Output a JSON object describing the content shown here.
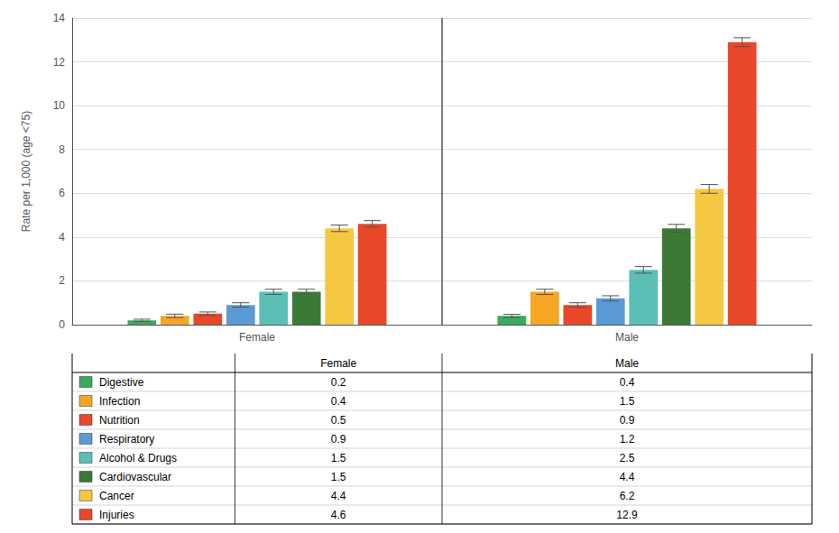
{
  "chart_data": {
    "type": "bar",
    "categories": [
      "Female",
      "Male"
    ],
    "ylabel": "Rate per 1,000 (age <75)",
    "ylim": [
      0,
      14
    ],
    "yticks": [
      0,
      2,
      4,
      6,
      8,
      10,
      12,
      14
    ],
    "grid": true,
    "series": [
      {
        "name": "Digestive",
        "color": "#3aaa5c",
        "values": [
          0.2,
          0.4
        ],
        "errors": [
          0.05,
          0.07
        ]
      },
      {
        "name": "Infection",
        "color": "#f5a623",
        "values": [
          0.4,
          1.5
        ],
        "errors": [
          0.08,
          0.12
        ]
      },
      {
        "name": "Nutrition",
        "color": "#e8472a",
        "values": [
          0.5,
          0.9
        ],
        "errors": [
          0.08,
          0.1
        ]
      },
      {
        "name": "Respiratory",
        "color": "#5b9bd5",
        "values": [
          0.9,
          1.2
        ],
        "errors": [
          0.1,
          0.12
        ]
      },
      {
        "name": "Alcohol & Drugs",
        "color": "#5bbfb5",
        "values": [
          1.5,
          2.5
        ],
        "errors": [
          0.12,
          0.15
        ]
      },
      {
        "name": "Cardiovascular",
        "color": "#3a7a35",
        "values": [
          1.5,
          4.4
        ],
        "errors": [
          0.12,
          0.18
        ]
      },
      {
        "name": "Cancer",
        "color": "#f5c842",
        "values": [
          4.4,
          6.2
        ],
        "errors": [
          0.15,
          0.2
        ]
      },
      {
        "name": "Injuries",
        "color": "#e8472a",
        "values": [
          4.6,
          12.9
        ],
        "errors": [
          0.15,
          0.2
        ]
      }
    ]
  }
}
